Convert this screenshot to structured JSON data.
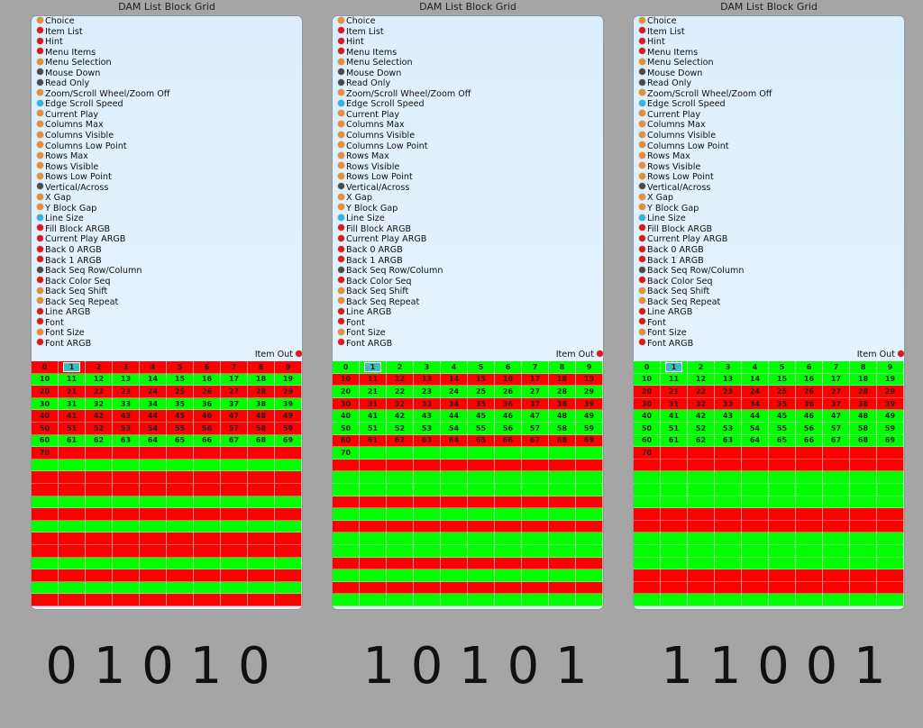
{
  "title": "DAM List Block Grid",
  "pins": [
    {
      "label": "Choice",
      "color": "#f08c2a"
    },
    {
      "label": "Item List",
      "color": "#e01818"
    },
    {
      "label": "Hint",
      "color": "#e01818"
    },
    {
      "label": "Menu Items",
      "color": "#e01818"
    },
    {
      "label": "Menu Selection",
      "color": "#f08c2a"
    },
    {
      "label": "Mouse Down",
      "color": "#4a4a4a"
    },
    {
      "label": "Read Only",
      "color": "#4a4a4a"
    },
    {
      "label": "Zoom/Scroll Wheel/Zoom Off",
      "color": "#f08c2a"
    },
    {
      "label": "Edge Scroll Speed",
      "color": "#2cb6e6"
    },
    {
      "label": "Current Play",
      "color": "#f08c2a"
    },
    {
      "label": "Columns Max",
      "color": "#f08c2a"
    },
    {
      "label": "Columns Visible",
      "color": "#f08c2a"
    },
    {
      "label": "Columns Low Point",
      "color": "#f08c2a"
    },
    {
      "label": "Rows Max",
      "color": "#f08c2a"
    },
    {
      "label": "Rows Visible",
      "color": "#f08c2a"
    },
    {
      "label": "Rows Low Point",
      "color": "#f08c2a"
    },
    {
      "label": "Vertical/Across",
      "color": "#4a4a4a"
    },
    {
      "label": "X Gap",
      "color": "#f08c2a"
    },
    {
      "label": "Y Block Gap",
      "color": "#f08c2a"
    },
    {
      "label": "Line Size",
      "color": "#2cb6e6"
    },
    {
      "label": "Fill Block ARGB",
      "color": "#e01818"
    },
    {
      "label": "Current Play ARGB",
      "color": "#e01818"
    },
    {
      "label": "Back 0 ARGB",
      "color": "#e01818"
    },
    {
      "label": "Back 1 ARGB",
      "color": "#e01818"
    },
    {
      "label": "Back Seq Row/Column",
      "color": "#4a4a4a"
    },
    {
      "label": "Back Color Seq",
      "color": "#e01818"
    },
    {
      "label": "Back Seq Shift",
      "color": "#f08c2a"
    },
    {
      "label": "Back Seq Repeat",
      "color": "#f08c2a"
    },
    {
      "label": "Line ARGB",
      "color": "#e01818"
    },
    {
      "label": "Font",
      "color": "#e01818"
    },
    {
      "label": "Font Size",
      "color": "#f08c2a"
    },
    {
      "label": "Font ARGB",
      "color": "#e01818"
    }
  ],
  "item_out": {
    "label": "Item Out",
    "color": "#e01818"
  },
  "colors": {
    "red": "#ff0000",
    "green": "#00ff00"
  },
  "grid": {
    "columns": 10,
    "rows": 20,
    "item_count": 71,
    "selected": 1
  },
  "panels": [
    {
      "sequence": "01010",
      "caption": "0 1 0 1 0"
    },
    {
      "sequence": "10101",
      "caption": "1 0 1 0 1"
    },
    {
      "sequence": "11001",
      "caption": "1 1 0 0 1"
    }
  ]
}
